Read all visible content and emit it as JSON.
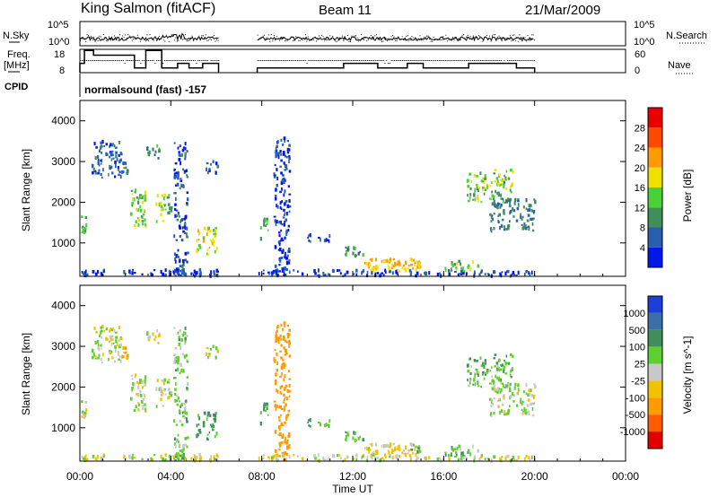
{
  "chart_data": {
    "type": "heatmap",
    "title": {
      "station": "King Salmon (fitACF)",
      "beam": "Beam 11",
      "date": "21/Mar/2009"
    },
    "cpid_label": "CPID",
    "cpid_text": "normalsound (fast) -157",
    "time_axis": {
      "label": "Time UT",
      "ticks": [
        "00:00",
        "04:00",
        "08:00",
        "12:00",
        "16:00",
        "20:00",
        "00:00"
      ],
      "range_hours": [
        0,
        24
      ]
    },
    "top_panels": {
      "nsky": {
        "left_label": "N.Sky",
        "right_label": "N.Search",
        "left_ticks": [
          "10^5",
          "10^0"
        ],
        "right_ticks": [
          "10^5",
          "10^0"
        ]
      },
      "freq": {
        "left_label_line1": "Freq.",
        "left_label_line2": "[MHz]",
        "right_label": "Nave",
        "left_ticks": [
          "18",
          "8"
        ],
        "right_ticks": [
          "60",
          "0"
        ],
        "freq_steps": [
          {
            "t": 0.0,
            "f": 12
          },
          {
            "t": 0.2,
            "f": 17.5
          },
          {
            "t": 0.6,
            "f": 15.5
          },
          {
            "t": 1.1,
            "f": 15.5
          },
          {
            "t": 2.4,
            "f": 10
          },
          {
            "t": 2.9,
            "f": 17.5
          },
          {
            "t": 3.6,
            "f": 10
          },
          {
            "t": 4.3,
            "f": 12
          },
          {
            "t": 4.8,
            "f": 10
          },
          {
            "t": 5.4,
            "f": 12
          },
          {
            "t": 6.1,
            "f": 12
          }
        ],
        "freq_steps_2": [
          {
            "t": 7.8,
            "f": 10
          },
          {
            "t": 11.6,
            "f": 12
          },
          {
            "t": 13.1,
            "f": 10
          },
          {
            "t": 14.4,
            "f": 12
          },
          {
            "t": 15.1,
            "f": 10
          },
          {
            "t": 17.1,
            "f": 12
          },
          {
            "t": 19.2,
            "f": 10
          },
          {
            "t": 20.0,
            "f": 10
          }
        ]
      }
    },
    "range_axis": {
      "label": "Slant Range [km]",
      "ticks": [
        1000,
        2000,
        3000,
        4000
      ],
      "range_km": [
        180,
        4500
      ]
    },
    "power_panel": {
      "colorbar_label": "Power [dB]",
      "colorbar_ticks": [
        "4",
        "8",
        "12",
        "16",
        "20",
        "24",
        "28"
      ],
      "colors": [
        "#0018e8",
        "#2a5fb0",
        "#3f8f5a",
        "#4cd037",
        "#f0e000",
        "#ff9a00",
        "#ff4800",
        "#e80000"
      ]
    },
    "velocity_panel": {
      "colorbar_label": "Velocity [m s^-1]",
      "colorbar_ticks": [
        "1000",
        "500",
        "100",
        "25",
        "-25",
        "-100",
        "-500",
        "-1000"
      ],
      "colors": [
        "#1c3fd8",
        "#3c6ea8",
        "#3f8f5a",
        "#5fcf30",
        "#c8c8c8",
        "#f2c200",
        "#ff9a00",
        "#ff5a00",
        "#e00000"
      ]
    },
    "scatter_regions": [
      {
        "t0": 0.0,
        "t1": 0.25,
        "r0": 1200,
        "r1": 1700,
        "power": 12,
        "vel": 0
      },
      {
        "t0": 0.5,
        "t1": 1.8,
        "r0": 2600,
        "r1": 3500,
        "power": 6,
        "vel": 0
      },
      {
        "t0": 1.8,
        "t1": 2.1,
        "r0": 2700,
        "r1": 3000,
        "power": 8,
        "vel": -150
      },
      {
        "t0": 2.2,
        "t1": 2.9,
        "r0": 1400,
        "r1": 2400,
        "power": 14,
        "vel": 10
      },
      {
        "t0": 2.9,
        "t1": 3.5,
        "r0": 3000,
        "r1": 3400,
        "power": 10,
        "vel": 0
      },
      {
        "t0": 3.3,
        "t1": 3.7,
        "r0": 1500,
        "r1": 2200,
        "power": 16,
        "vel": 10
      },
      {
        "t0": 3.7,
        "t1": 4.0,
        "r0": 1600,
        "r1": 2200,
        "power": 12,
        "vel": 0
      },
      {
        "t0": 4.1,
        "t1": 4.7,
        "r0": 200,
        "r1": 3500,
        "power": 5,
        "vel": 60
      },
      {
        "t0": 5.1,
        "t1": 6.0,
        "r0": 700,
        "r1": 1400,
        "power": 18,
        "vel": 120
      },
      {
        "t0": 5.5,
        "t1": 6.1,
        "r0": 2700,
        "r1": 3000,
        "power": 6,
        "vel": 0
      },
      {
        "t0": 7.9,
        "t1": 8.3,
        "r0": 1100,
        "r1": 1600,
        "power": 12,
        "vel": 120
      },
      {
        "t0": 8.5,
        "t1": 9.2,
        "r0": 200,
        "r1": 3600,
        "power": 4,
        "vel": -300
      },
      {
        "t0": 10.0,
        "t1": 11.0,
        "r0": 1000,
        "r1": 1200,
        "power": 6,
        "vel": 100
      },
      {
        "t0": 11.5,
        "t1": 12.5,
        "r0": 650,
        "r1": 900,
        "power": 10,
        "vel": 80
      },
      {
        "t0": 12.5,
        "t1": 15.0,
        "r0": 300,
        "r1": 600,
        "power": 20,
        "vel": -30
      },
      {
        "t0": 13.5,
        "t1": 14.0,
        "r0": 400,
        "r1": 600,
        "power": 20,
        "vel": -60
      },
      {
        "t0": 14.5,
        "t1": 15.0,
        "r0": 400,
        "r1": 600,
        "power": 20,
        "vel": 60
      },
      {
        "t0": 16.0,
        "t1": 17.5,
        "r0": 300,
        "r1": 550,
        "power": 14,
        "vel": 60
      },
      {
        "t0": 17.0,
        "t1": 19.0,
        "r0": 2000,
        "r1": 2800,
        "power": 14,
        "vel": 80
      },
      {
        "t0": 18.0,
        "t1": 20.0,
        "r0": 1300,
        "r1": 2100,
        "power": 8,
        "vel": 30
      },
      {
        "t0": 17.5,
        "t1": 20.0,
        "r0": 180,
        "r1": 350,
        "power": 4,
        "vel": 0
      },
      {
        "t0": 0.0,
        "t1": 6.1,
        "r0": 180,
        "r1": 350,
        "power": 4,
        "vel": 0
      },
      {
        "t0": 7.8,
        "t1": 17.5,
        "r0": 180,
        "r1": 330,
        "power": 4,
        "vel": 0
      }
    ]
  }
}
